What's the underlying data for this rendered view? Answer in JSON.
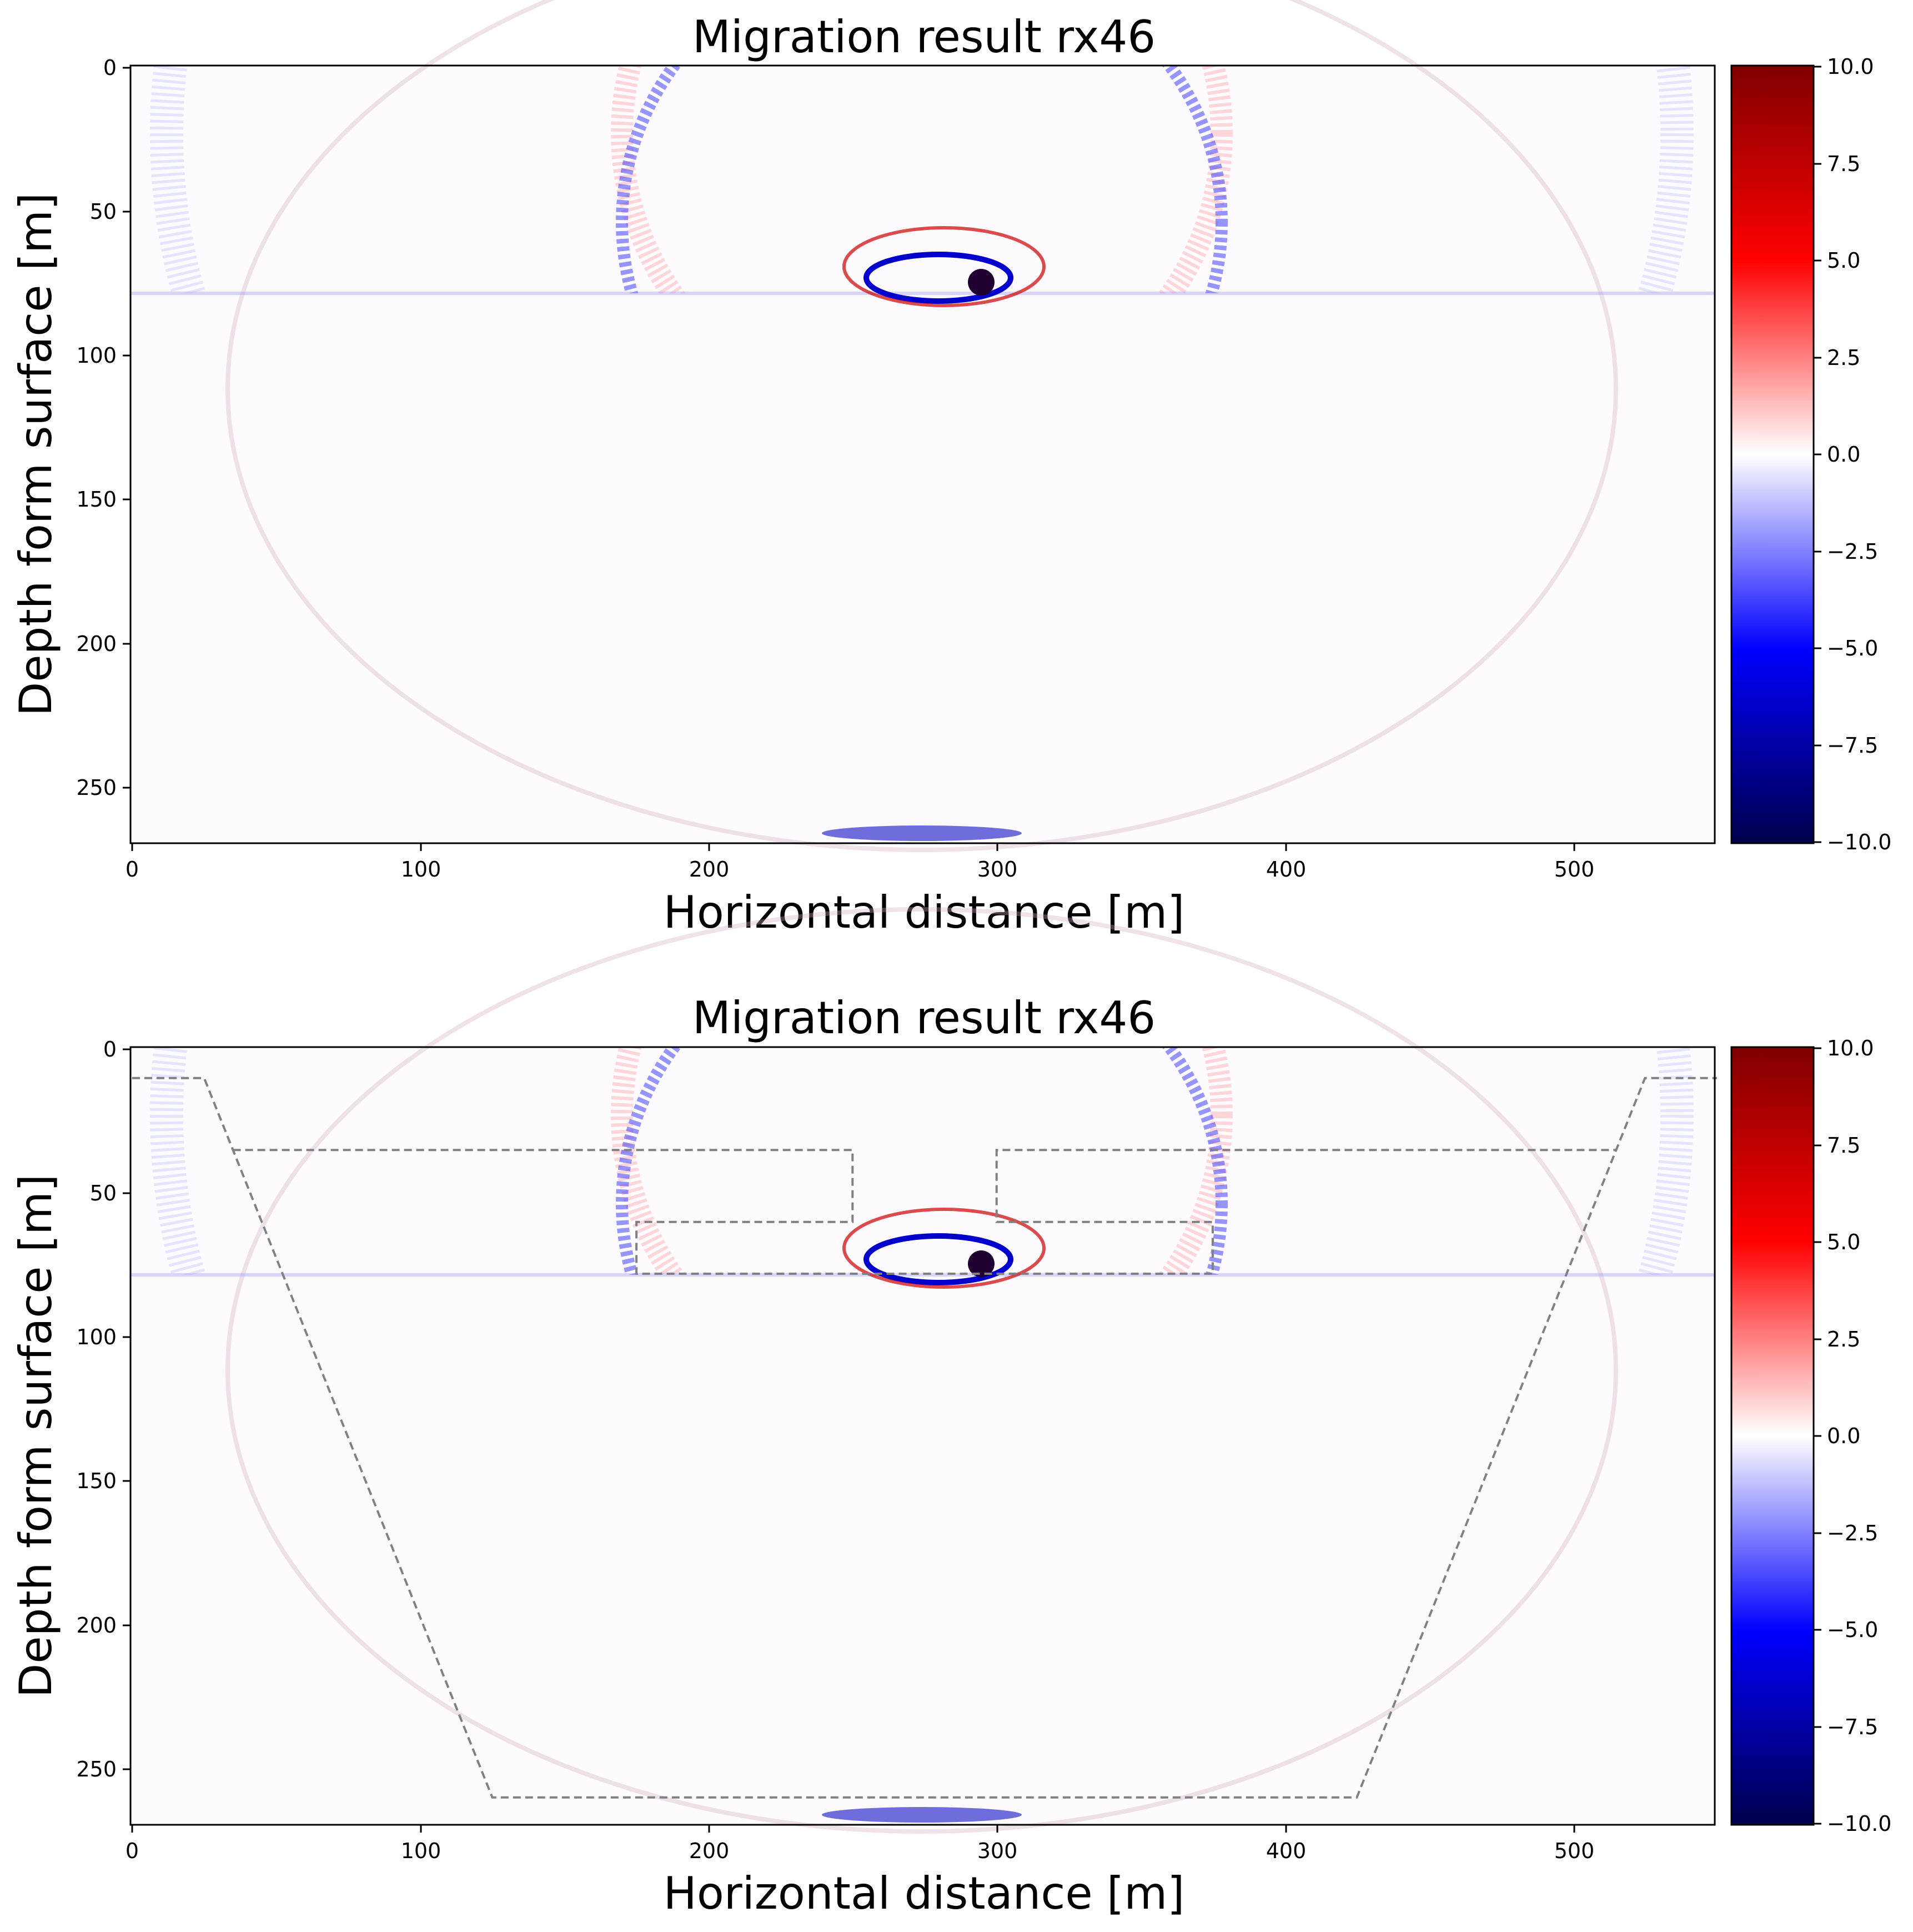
{
  "colors": {
    "colormap": [
      "#00004c",
      "#0000ff",
      "#ffffff",
      "#ff0000",
      "#800000"
    ],
    "background": "#fdfbff",
    "outline": "#808080"
  },
  "chart_data": [
    {
      "type": "heatmap",
      "title": "Migration result rx46",
      "xlabel": "Horizontal distance [m]",
      "ylabel": "Depth form surface [m]",
      "xlim": [
        0,
        550
      ],
      "ylim": [
        270,
        0
      ],
      "y_inverted": true,
      "xticks": [
        "0",
        "100",
        "200",
        "300",
        "400",
        "500"
      ],
      "yticks": [
        "0",
        "50",
        "100",
        "150",
        "200",
        "250"
      ],
      "colorbar": {
        "min": -10.0,
        "max": 10.0,
        "cmap": "seismic",
        "ticks": [
          "10.0",
          "7.5",
          "5.0",
          "2.5",
          "0.0",
          "−2.5",
          "−5.0",
          "−7.5",
          "−10.0"
        ]
      },
      "features": {
        "strongest_anomaly": {
          "x": 295,
          "y": 76
        },
        "interface_depth": 78,
        "wave_rings_centre": {
          "x": 290,
          "y": 45
        }
      },
      "outline": null
    },
    {
      "type": "heatmap",
      "title": "Migration result rx46",
      "xlabel": "Horizontal distance [m]",
      "ylabel": "Depth form surface [m]",
      "xlim": [
        0,
        550
      ],
      "ylim": [
        270,
        0
      ],
      "y_inverted": true,
      "xticks": [
        "0",
        "100",
        "200",
        "300",
        "400",
        "500"
      ],
      "yticks": [
        "0",
        "50",
        "100",
        "150",
        "200",
        "250"
      ],
      "colorbar": {
        "min": -10.0,
        "max": 10.0,
        "cmap": "seismic",
        "ticks": [
          "10.0",
          "7.5",
          "5.0",
          "2.5",
          "0.0",
          "−2.5",
          "−5.0",
          "−7.5",
          "−10.0"
        ]
      },
      "features": {
        "strongest_anomaly": {
          "x": 295,
          "y": 76
        },
        "interface_depth": 78,
        "wave_rings_centre": {
          "x": 290,
          "y": 45
        }
      },
      "outline": {
        "style": "dashed",
        "paths": [
          [
            [
              0,
              10
            ],
            [
              25,
              10
            ],
            [
              125,
              260
            ],
            [
              425,
              260
            ],
            [
              525,
              10
            ],
            [
              550,
              10
            ]
          ],
          [
            [
              35,
              35
            ],
            [
              250,
              35
            ],
            [
              250,
              60
            ],
            [
              175,
              60
            ],
            [
              175,
              78
            ],
            [
              375,
              78
            ],
            [
              375,
              60
            ],
            [
              300,
              60
            ],
            [
              300,
              35
            ],
            [
              515,
              35
            ]
          ]
        ]
      }
    }
  ]
}
